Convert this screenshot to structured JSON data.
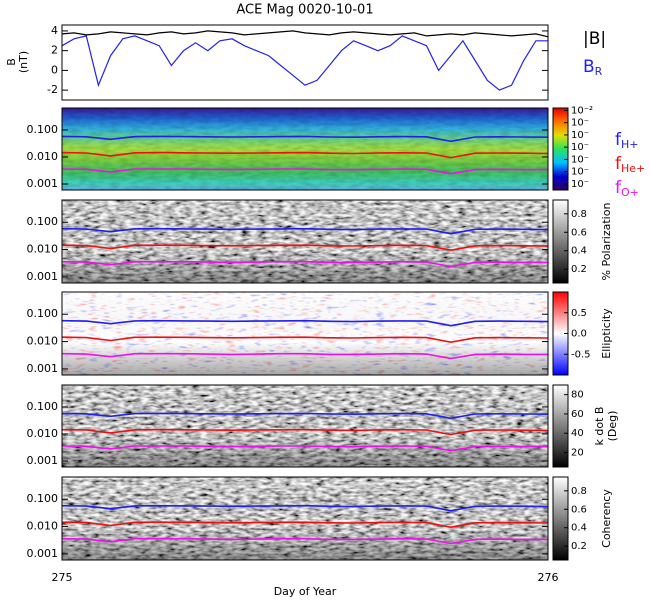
{
  "chart_data": [
    {
      "type": "line",
      "title": "ACE Mag 0020-10-01",
      "ylabel": "B",
      "yunit": "(nT)",
      "xlabel": "Day of Year",
      "xlim": [
        275,
        276
      ],
      "xticks": [
        275,
        276
      ],
      "x": [
        275,
        275.025,
        275.05,
        275.075,
        275.1,
        275.125,
        275.15,
        275.175,
        275.2,
        275.225,
        275.25,
        275.275,
        275.3,
        275.325,
        275.35,
        275.375,
        275.4,
        275.425,
        275.45,
        275.475,
        275.5,
        275.525,
        275.55,
        275.575,
        275.6,
        275.625,
        275.65,
        275.675,
        275.7,
        275.725,
        275.75,
        275.775,
        275.8,
        275.825,
        275.85,
        275.875,
        275.9,
        275.925,
        275.95,
        275.975,
        276
      ],
      "ylim": [
        -3,
        4.6
      ],
      "yticks": [
        -2,
        0,
        2,
        4
      ],
      "series": [
        {
          "name": "|B|",
          "color": "#000000",
          "values": [
            3.7,
            3.8,
            3.6,
            3.7,
            3.9,
            3.8,
            3.7,
            3.6,
            3.8,
            3.9,
            3.7,
            3.8,
            4.0,
            3.9,
            3.8,
            3.6,
            3.7,
            3.8,
            3.9,
            4.0,
            3.8,
            3.7,
            3.6,
            3.8,
            3.9,
            3.8,
            3.7,
            3.6,
            3.7,
            3.8,
            3.5,
            3.6,
            3.7,
            3.6,
            3.8,
            3.7,
            3.6,
            3.5,
            3.6,
            3.7,
            3.4
          ]
        },
        {
          "name": "B",
          "name_sub": "R",
          "color": "#2222ee",
          "values": [
            2.5,
            3.2,
            3.5,
            -1.5,
            1.5,
            3.2,
            3.5,
            3.0,
            2.5,
            0.5,
            2.0,
            2.8,
            2.0,
            3.0,
            3.2,
            2.5,
            2.0,
            1.5,
            0.5,
            -0.5,
            -1.5,
            -1.0,
            0.5,
            2.0,
            3.0,
            2.5,
            2.0,
            2.5,
            3.5,
            3.0,
            2.5,
            0.0,
            1.5,
            3.0,
            1.0,
            -1.0,
            -2.0,
            -1.5,
            1.0,
            3.0,
            3.0
          ]
        }
      ]
    },
    {
      "type": "spectrogram",
      "ylog": true,
      "ylim": [
        0.0006,
        0.65
      ],
      "yticks": [
        {
          "value": 0.001,
          "label": "0.001"
        },
        {
          "value": 0.01,
          "label": "0.010"
        },
        {
          "value": 0.1,
          "label": "0.100"
        }
      ],
      "texture": "rainbow",
      "colorbar": {
        "label": "",
        "clim": [
          -8.5,
          -1.8
        ],
        "colormap": [
          "#300060",
          "#0000d0",
          "#00c0ff",
          "#30e060",
          "#e0e000",
          "#ff7000",
          "#e00000"
        ],
        "ticks": [
          {
            "value": -8,
            "label": "10⁻"
          },
          {
            "value": -7,
            "label": "10⁻"
          },
          {
            "value": -6,
            "label": "10⁻"
          },
          {
            "value": -5,
            "label": "10⁻"
          },
          {
            "value": -4,
            "label": "10⁻"
          },
          {
            "value": -3,
            "label": "10⁻"
          },
          {
            "value": -2,
            "label": "10⁻²"
          }
        ]
      }
    },
    {
      "type": "spectrogram",
      "ylog": true,
      "ylim": [
        0.0006,
        0.65
      ],
      "yticks": [
        {
          "value": 0.001,
          "label": "0.001"
        },
        {
          "value": 0.01,
          "label": "0.010"
        },
        {
          "value": 0.1,
          "label": "0.100"
        }
      ],
      "texture": "gray",
      "colorbar": {
        "label": "% Polarization",
        "clim": [
          0.05,
          0.95
        ],
        "colormap": [
          "#000000",
          "#ffffff"
        ],
        "ticks": [
          0.2,
          0.4,
          0.6,
          0.8
        ]
      }
    },
    {
      "type": "spectrogram",
      "ylog": true,
      "ylim": [
        0.0006,
        0.65
      ],
      "yticks": [
        {
          "value": 0.001,
          "label": "0.001"
        },
        {
          "value": 0.01,
          "label": "0.010"
        },
        {
          "value": 0.1,
          "label": "0.100"
        }
      ],
      "texture": "redblue",
      "colorbar": {
        "label": "Ellipticity",
        "clim": [
          -1,
          1
        ],
        "colormap": [
          "#0000ff",
          "#ffffff",
          "#ff0000"
        ],
        "ticks": [
          -0.5,
          {
            "value": 0,
            "label": "0.0"
          },
          0.5
        ]
      }
    },
    {
      "type": "spectrogram",
      "ylog": true,
      "ylim": [
        0.0006,
        0.65
      ],
      "yticks": [
        {
          "value": 0.001,
          "label": "0.001"
        },
        {
          "value": 0.01,
          "label": "0.010"
        },
        {
          "value": 0.1,
          "label": "0.100"
        }
      ],
      "texture": "gray",
      "colorbar": {
        "label": "k dot B",
        "label2": "(Deg)",
        "clim": [
          5,
          90
        ],
        "colormap": [
          "#000000",
          "#ffffff"
        ],
        "ticks": [
          20,
          40,
          60,
          80
        ]
      }
    },
    {
      "type": "spectrogram",
      "ylog": true,
      "ylim": [
        0.0006,
        0.65
      ],
      "yticks": [
        {
          "value": 0.001,
          "label": "0.001"
        },
        {
          "value": 0.01,
          "label": "0.010"
        },
        {
          "value": 0.1,
          "label": "0.100"
        }
      ],
      "texture": "gray",
      "colorbar": {
        "label": "Coherency",
        "clim": [
          0.05,
          0.95
        ],
        "colormap": [
          "#000000",
          "#ffffff"
        ],
        "ticks": [
          0.2,
          0.4,
          0.6,
          0.8
        ]
      }
    }
  ],
  "gyrofrequencies": {
    "x": [
      275,
      275.05,
      275.1,
      275.15,
      275.2,
      275.25,
      275.3,
      275.35,
      275.4,
      275.45,
      275.5,
      275.55,
      275.6,
      275.65,
      275.7,
      275.75,
      275.8,
      275.85,
      275.9,
      275.95,
      276
    ],
    "series": [
      {
        "name": "f",
        "sub": "H+",
        "color": "#2020ee",
        "values": [
          0.058,
          0.056,
          0.045,
          0.057,
          0.058,
          0.057,
          0.056,
          0.055,
          0.056,
          0.057,
          0.058,
          0.055,
          0.054,
          0.056,
          0.057,
          0.056,
          0.038,
          0.055,
          0.056,
          0.055,
          0.054
        ]
      },
      {
        "name": "f",
        "sub": "He+",
        "color": "#ee1010",
        "values": [
          0.0145,
          0.014,
          0.011,
          0.0143,
          0.0145,
          0.0143,
          0.014,
          0.0138,
          0.014,
          0.0143,
          0.0145,
          0.0138,
          0.0135,
          0.014,
          0.0143,
          0.014,
          0.0095,
          0.0138,
          0.014,
          0.0138,
          0.0135
        ]
      },
      {
        "name": "f",
        "sub": "O+",
        "color": "#ee10ee",
        "values": [
          0.0036,
          0.0035,
          0.0028,
          0.0036,
          0.0036,
          0.0036,
          0.0035,
          0.0034,
          0.0035,
          0.0036,
          0.0036,
          0.0034,
          0.0034,
          0.0035,
          0.0036,
          0.0035,
          0.0024,
          0.0034,
          0.0035,
          0.0034,
          0.0034
        ]
      }
    ]
  }
}
